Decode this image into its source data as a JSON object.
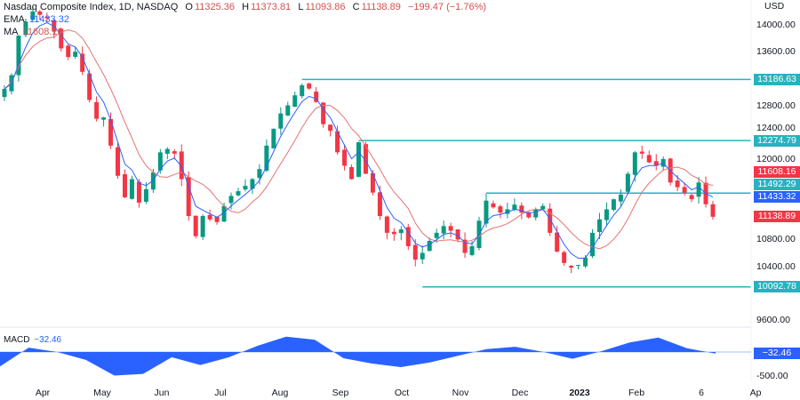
{
  "header": {
    "symbol": "Nasdaq Composite Index, 1D, NASDAQ",
    "o_label": "O",
    "o": "11325.36",
    "h_label": "H",
    "h": "11373.81",
    "l_label": "L",
    "l": "11093.86",
    "c_label": "C",
    "c": "11138.89",
    "change": "−199.47 (−1.76%)",
    "ema_label": "EMA",
    "ema": "11433.32",
    "ma_label": "MA",
    "ma": "11608.16",
    "macd_label": "MACD",
    "macd": "−32.46"
  },
  "colors": {
    "up": "#089981",
    "down": "#f23645",
    "ema": "#2962ff",
    "ma": "#e57373",
    "level": "#26b3bf",
    "macd": "#2962ff"
  },
  "chart_data": [
    {
      "type": "candlestick",
      "currency": "USD",
      "ylim": [
        9450,
        14300
      ],
      "y_ticks": [
        "14000.00",
        "13600.00",
        "12800.00",
        "12400.00",
        "12000.00",
        "10800.00",
        "10400.00",
        "9600.00"
      ],
      "x_ticks": [
        "Apr",
        "May",
        "Jun",
        "Jul",
        "Aug",
        "Sep",
        "Oct",
        "Nov",
        "Dec",
        "2023",
        "Feb",
        "6",
        "Ap"
      ],
      "closes": [
        13045,
        13250,
        13840,
        14050,
        14200,
        14150,
        14100,
        13900,
        13650,
        13520,
        13600,
        13300,
        12880,
        12600,
        12620,
        12200,
        11750,
        11430,
        11700,
        11350,
        11550,
        11800,
        12100,
        12150,
        12080,
        11700,
        11150,
        10850,
        11150,
        11100,
        11060,
        11300,
        11450,
        11520,
        11600,
        11700,
        11850,
        12200,
        12450,
        12680,
        12800,
        12950,
        13100,
        13050,
        12850,
        12520,
        12420,
        12100,
        11900,
        11700,
        12250,
        11780,
        11500,
        11150,
        10900,
        10880,
        10950,
        10700,
        10500,
        10600,
        10780,
        10900,
        11000,
        10930,
        10800,
        10600,
        10700,
        11080,
        11380,
        11280,
        11200,
        11250,
        11320,
        11200,
        11130,
        11250,
        11300,
        10900,
        10620,
        10450,
        10380,
        10420,
        10530,
        10900,
        11100,
        11250,
        11400,
        11470,
        11780,
        12100,
        12080,
        11950,
        11900,
        12000,
        11650,
        11580,
        11500,
        11400,
        11650,
        11325.36,
        11138.89
      ],
      "levels": [
        {
          "value": 13186.63,
          "label": "13186.63"
        },
        {
          "value": 12274.79,
          "label": "12274.79"
        },
        {
          "value": 11492.29,
          "label": "11492.29"
        },
        {
          "value": 10092.78,
          "label": "10092.78"
        }
      ],
      "last_tags": {
        "ma": "11608.16",
        "ema": "11433.32",
        "close": "11138.89"
      }
    },
    {
      "type": "area",
      "name": "MACD",
      "y_ticks": [
        "-500.00"
      ],
      "values": [
        -300,
        90,
        0,
        -165,
        -490,
        -455,
        -110,
        -270,
        -110,
        130,
        320,
        255,
        -130,
        -240,
        -315,
        -220,
        -80,
        60,
        110,
        0,
        -140,
        15,
        200,
        300,
        80,
        -32.46
      ],
      "last_tag": "−32.46"
    }
  ]
}
